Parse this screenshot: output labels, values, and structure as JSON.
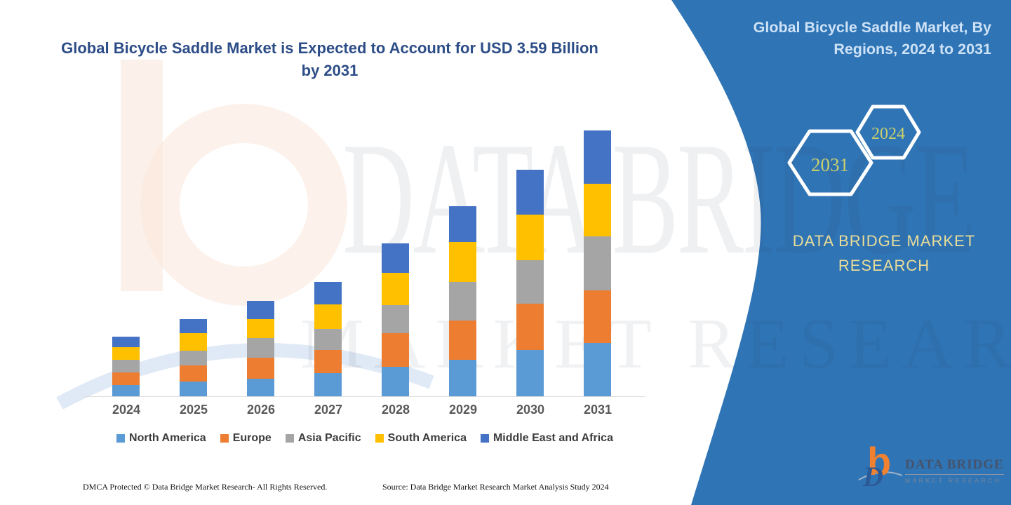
{
  "header": {
    "title": "Global Bicycle Saddle Market is Expected to Account for USD 3.59 Billion by 2031"
  },
  "side_panel": {
    "title": "Global Bicycle Saddle Market, By Regions, 2024 to 2031",
    "hexagons": [
      {
        "label": "2031"
      },
      {
        "label": "2024"
      }
    ],
    "brand_line1": "DATA BRIDGE MARKET",
    "brand_line2": "RESEARCH",
    "colors": {
      "background": "#2F74B5",
      "title_text": "#CDE2F6",
      "hex_year_text": "#C9CF6E",
      "brand_text": "#E9DD99"
    }
  },
  "watermark": {
    "line1": "DATA BRIDGE",
    "line2": "MARKET RESEARCH"
  },
  "chart_data": {
    "type": "bar",
    "stacked": true,
    "title": "Global Bicycle Saddle Market is Expected to Account for USD 3.59 Billion by 2031",
    "unit": "USD billion",
    "categories": [
      "2024",
      "2025",
      "2026",
      "2027",
      "2028",
      "2029",
      "2030",
      "2031"
    ],
    "series": [
      {
        "name": "North America",
        "color": "#5B9BD5",
        "values": [
          0.15,
          0.2,
          0.24,
          0.31,
          0.4,
          0.49,
          0.63,
          0.72
        ]
      },
      {
        "name": "Europe",
        "color": "#ED7D31",
        "values": [
          0.17,
          0.22,
          0.28,
          0.32,
          0.45,
          0.53,
          0.62,
          0.71
        ]
      },
      {
        "name": "Asia Pacific",
        "color": "#A5A5A5",
        "values": [
          0.17,
          0.2,
          0.27,
          0.28,
          0.38,
          0.52,
          0.59,
          0.73
        ]
      },
      {
        "name": "South America",
        "color": "#FFC000",
        "values": [
          0.17,
          0.23,
          0.25,
          0.33,
          0.44,
          0.54,
          0.61,
          0.71
        ]
      },
      {
        "name": "Middle East and Africa",
        "color": "#4472C4",
        "values": [
          0.14,
          0.19,
          0.25,
          0.3,
          0.4,
          0.49,
          0.61,
          0.72
        ]
      }
    ],
    "totals": [
      0.8,
      1.04,
      1.29,
      1.54,
      2.07,
      2.57,
      3.06,
      3.59
    ],
    "ylim": [
      0,
      3.8
    ],
    "grid": false,
    "y_axis_visible": false,
    "legend_position": "bottom"
  },
  "footer": {
    "dmca": "DMCA Protected © Data Bridge Market Research-  All Rights Reserved.",
    "source": "Source: Data Bridge Market Research  Market Analysis Study 2024"
  },
  "logo": {
    "mark_b": "b",
    "mark_d": "D",
    "name": "DATA BRIDGE",
    "tagline": "MARKET RESEARCH"
  }
}
